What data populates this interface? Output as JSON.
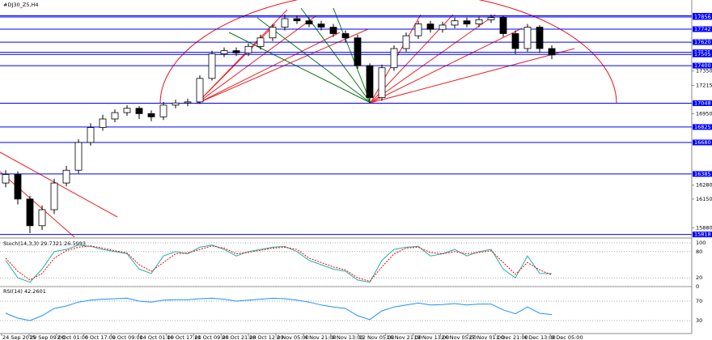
{
  "chart_data": [
    {
      "type": "candlestick",
      "title": "#DJ30_Z5,H4",
      "categories": [
        "24 Sep 2015",
        "29 Sep 09:00",
        "2 Oct 01:00",
        "6 Oct 17:00",
        "9 Oct 09:00",
        "14 Oct 01:00",
        "16 Oct 17:00",
        "21 Oct 09:00",
        "26 Oct 21:00",
        "28 Oct 12:00",
        "2 Nov 05:00",
        "4 Nov 21:00",
        "9 Nov 13:00",
        "12 Nov 05:00",
        "16 Nov 21:00",
        "19 Nov 13:00",
        "24 Nov 05:00",
        "27 Nov 01:00",
        "1 Dec 21:00",
        "4 Dec 13:00",
        "9 Dec 05:00"
      ],
      "ohlc": [
        [
          16300,
          16420,
          16260,
          16380
        ],
        [
          16380,
          16410,
          16100,
          16150
        ],
        [
          16150,
          16180,
          15830,
          15900
        ],
        [
          15900,
          16090,
          15860,
          16050
        ],
        [
          16050,
          16340,
          16010,
          16300
        ],
        [
          16300,
          16460,
          16270,
          16420
        ],
        [
          16420,
          16710,
          16390,
          16680
        ],
        [
          16680,
          16860,
          16650,
          16820
        ],
        [
          16820,
          16940,
          16790,
          16900
        ],
        [
          16900,
          16990,
          16870,
          16960
        ],
        [
          16960,
          17030,
          16930,
          17000
        ],
        [
          17000,
          17020,
          16900,
          16950
        ],
        [
          16950,
          16980,
          16880,
          16920
        ],
        [
          16920,
          17060,
          16890,
          17030
        ],
        [
          17030,
          17080,
          17000,
          17050
        ],
        [
          17050,
          17090,
          17020,
          17060
        ],
        [
          17060,
          17310,
          17040,
          17280
        ],
        [
          17280,
          17540,
          17260,
          17510
        ],
        [
          17510,
          17570,
          17480,
          17540
        ],
        [
          17540,
          17570,
          17490,
          17520
        ],
        [
          17520,
          17610,
          17490,
          17580
        ],
        [
          17580,
          17690,
          17550,
          17660
        ],
        [
          17660,
          17790,
          17630,
          17760
        ],
        [
          17760,
          17880,
          17730,
          17840
        ],
        [
          17840,
          17870,
          17790,
          17820
        ],
        [
          17820,
          17850,
          17760,
          17790
        ],
        [
          17790,
          17820,
          17730,
          17760
        ],
        [
          17760,
          17790,
          17670,
          17700
        ],
        [
          17700,
          17730,
          17620,
          17660
        ],
        [
          17660,
          17690,
          17370,
          17400
        ],
        [
          17400,
          17420,
          17050,
          17100
        ],
        [
          17100,
          17410,
          17070,
          17380
        ],
        [
          17380,
          17590,
          17350,
          17560
        ],
        [
          17560,
          17710,
          17530,
          17680
        ],
        [
          17680,
          17820,
          17650,
          17790
        ],
        [
          17790,
          17820,
          17710,
          17740
        ],
        [
          17740,
          17810,
          17710,
          17780
        ],
        [
          17780,
          17850,
          17750,
          17820
        ],
        [
          17820,
          17850,
          17760,
          17790
        ],
        [
          17790,
          17860,
          17760,
          17830
        ],
        [
          17830,
          17880,
          17800,
          17850
        ],
        [
          17850,
          17870,
          17670,
          17700
        ],
        [
          17700,
          17730,
          17510,
          17560
        ],
        [
          17560,
          17790,
          17530,
          17760
        ],
        [
          17760,
          17780,
          17520,
          17560
        ],
        [
          17560,
          17590,
          17460,
          17500
        ]
      ],
      "ylim": [
        15800,
        17977
      ],
      "yticks": [
        17350,
        17215,
        16950,
        16280,
        16150,
        15880
      ],
      "levels": [
        17867,
        17856,
        17742,
        17620,
        17525,
        17505,
        17400,
        17048,
        16825,
        16680,
        16385,
        15818
      ],
      "level_color": "#0000ff"
    },
    {
      "type": "line",
      "title": "Stoch(14,3,3) 29.7321 26.5993",
      "ylim": [
        0,
        100
      ],
      "yticks": [
        100,
        80,
        20,
        0
      ],
      "series": [
        {
          "color": "#20b2aa",
          "values": [
            60,
            20,
            10,
            40,
            80,
            85,
            95,
            92,
            85,
            80,
            75,
            40,
            30,
            70,
            80,
            75,
            90,
            95,
            85,
            70,
            80,
            85,
            90,
            92,
            80,
            60,
            50,
            40,
            35,
            15,
            10,
            60,
            85,
            90,
            92,
            70,
            75,
            85,
            70,
            80,
            85,
            40,
            20,
            70,
            30,
            29.7321
          ]
        },
        {
          "color": "#ff0000",
          "dash": true,
          "values": [
            65,
            35,
            15,
            30,
            65,
            82,
            90,
            93,
            88,
            82,
            77,
            50,
            35,
            55,
            75,
            77,
            85,
            93,
            88,
            75,
            78,
            83,
            88,
            90,
            85,
            65,
            55,
            45,
            38,
            20,
            12,
            45,
            75,
            88,
            90,
            78,
            75,
            80,
            75,
            78,
            82,
            55,
            28,
            55,
            38,
            26.5993
          ]
        }
      ]
    },
    {
      "type": "line",
      "title": "RSI(14) 42.2601",
      "ylim": [
        0,
        100
      ],
      "yticks": [
        70,
        30
      ],
      "series": [
        {
          "color": "#1e90ff",
          "values": [
            45,
            35,
            30,
            40,
            55,
            60,
            68,
            72,
            74,
            75,
            76,
            70,
            68,
            72,
            73,
            73,
            75,
            76,
            74,
            70,
            72,
            74,
            76,
            75,
            72,
            68,
            62,
            58,
            55,
            40,
            32,
            50,
            58,
            62,
            66,
            62,
            63,
            65,
            62,
            64,
            64,
            52,
            44,
            58,
            45,
            42.2601
          ]
        }
      ]
    }
  ]
}
